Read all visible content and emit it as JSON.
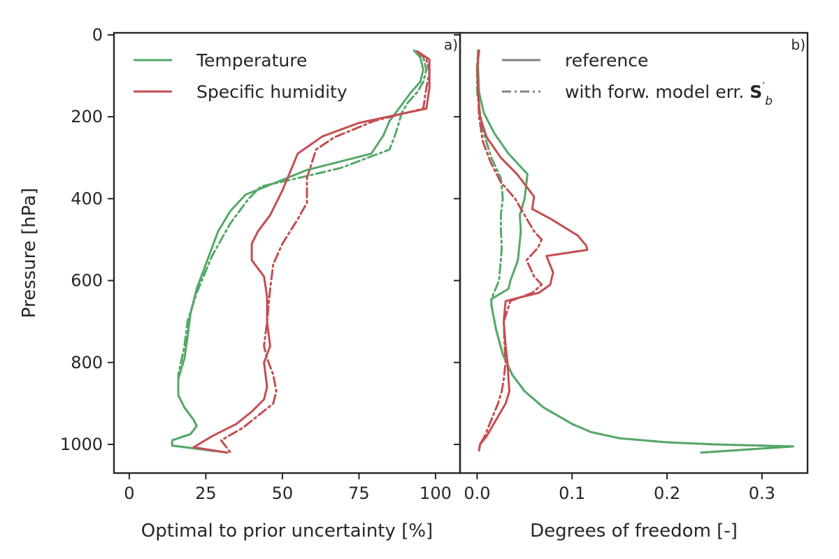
{
  "chart_data": [
    {
      "type": "line",
      "panel_label": "a)",
      "xlabel": "Optimal to prior uncertainty [%]",
      "ylabel": "Pressure [hPa]",
      "xlim": [
        -5,
        108
      ],
      "ylim": [
        1070,
        -5
      ],
      "xticks": [
        0,
        25,
        50,
        75,
        100
      ],
      "yticks": [
        0,
        200,
        400,
        600,
        800,
        1000
      ],
      "grid": false,
      "legend": {
        "placement": "top-left",
        "entries": [
          {
            "label": "Temperature",
            "color": "#55a868",
            "style": "solid"
          },
          {
            "label": "Specific humidity",
            "color": "#c44e52",
            "style": "solid"
          }
        ]
      },
      "series": [
        {
          "name": "Temperature",
          "color": "#55a868",
          "style": "solid",
          "points": [
            [
              93,
              38
            ],
            [
              95,
              55
            ],
            [
              96,
              85
            ],
            [
              95,
              115
            ],
            [
              92,
              140
            ],
            [
              89,
              170
            ],
            [
              85,
              210
            ],
            [
              83,
              245
            ],
            [
              79,
              290
            ],
            [
              58,
              330
            ],
            [
              48,
              360
            ],
            [
              38,
              390
            ],
            [
              33,
              430
            ],
            [
              29,
              480
            ],
            [
              25,
              560
            ],
            [
              22,
              620
            ],
            [
              20,
              680
            ],
            [
              19,
              740
            ],
            [
              18,
              790
            ],
            [
              16,
              840
            ],
            [
              16,
              880
            ],
            [
              18,
              910
            ],
            [
              21,
              940
            ],
            [
              22,
              955
            ],
            [
              20,
              975
            ],
            [
              14,
              990
            ],
            [
              14,
              1003
            ],
            [
              32,
              1020
            ]
          ]
        },
        {
          "name": "Temperature",
          "color": "#55a868",
          "style": "dashdot",
          "points": [
            [
              93,
              38
            ],
            [
              96,
              55
            ],
            [
              97,
              85
            ],
            [
              96,
              115
            ],
            [
              94,
              140
            ],
            [
              91,
              165
            ],
            [
              89,
              190
            ],
            [
              87,
              240
            ],
            [
              85,
              280
            ],
            [
              69,
              325
            ],
            [
              55,
              350
            ],
            [
              43,
              370
            ],
            [
              39,
              400
            ],
            [
              33,
              460
            ],
            [
              27,
              540
            ],
            [
              22,
              630
            ],
            [
              19,
              700
            ],
            [
              18,
              760
            ],
            [
              16,
              830
            ],
            [
              16,
              880
            ],
            [
              18,
              910
            ],
            [
              21,
              940
            ],
            [
              22,
              955
            ],
            [
              20,
              975
            ],
            [
              14,
              990
            ],
            [
              14,
              1003
            ],
            [
              32,
              1020
            ]
          ]
        },
        {
          "name": "Specific humidity",
          "color": "#c44e52",
          "style": "solid",
          "points": [
            [
              94,
              40
            ],
            [
              98,
              60
            ],
            [
              98,
              90
            ],
            [
              98,
              130
            ],
            [
              97,
              180
            ],
            [
              75,
              215
            ],
            [
              63,
              248
            ],
            [
              55,
              290
            ],
            [
              50,
              380
            ],
            [
              46,
              440
            ],
            [
              42,
              480
            ],
            [
              40,
              510
            ],
            [
              40,
              550
            ],
            [
              44,
              590
            ],
            [
              45,
              640
            ],
            [
              45,
              700
            ],
            [
              46,
              760
            ],
            [
              44,
              800
            ],
            [
              45,
              860
            ],
            [
              44,
              890
            ],
            [
              40,
              920
            ],
            [
              35,
              950
            ],
            [
              27,
              980
            ],
            [
              21,
              1007
            ],
            [
              32,
              1020
            ]
          ]
        },
        {
          "name": "Specific humidity",
          "color": "#c44e52",
          "style": "dashdot",
          "points": [
            [
              94,
              40
            ],
            [
              97,
              60
            ],
            [
              98,
              90
            ],
            [
              97,
              130
            ],
            [
              96,
              180
            ],
            [
              80,
              210
            ],
            [
              67,
              250
            ],
            [
              61,
              280
            ],
            [
              58,
              350
            ],
            [
              58,
              410
            ],
            [
              55,
              450
            ],
            [
              50,
              510
            ],
            [
              47,
              560
            ],
            [
              46,
              620
            ],
            [
              45,
              700
            ],
            [
              44,
              760
            ],
            [
              45,
              790
            ],
            [
              47,
              830
            ],
            [
              48,
              870
            ],
            [
              47,
              900
            ],
            [
              42,
              930
            ],
            [
              37,
              960
            ],
            [
              30,
              990
            ],
            [
              33,
              1020
            ]
          ]
        }
      ]
    },
    {
      "type": "line",
      "panel_label": "b)",
      "xlabel": "Degrees of freedom [-]",
      "ylabel": "",
      "xlim": [
        -0.018,
        0.348
      ],
      "ylim": [
        1070,
        -5
      ],
      "xticks": [
        0.0,
        0.1,
        0.2,
        0.3
      ],
      "xtick_labels": [
        "0.0",
        "0.1",
        "0.2",
        "0.3"
      ],
      "grid": false,
      "legend": {
        "placement": "top-left",
        "entries": [
          {
            "label": "reference",
            "color": "#808080",
            "style": "solid"
          },
          {
            "label": "with forw. model err. ",
            "math_suffix": "S′b",
            "color": "#808080",
            "style": "dashdot"
          }
        ]
      },
      "series": [
        {
          "name": "Temperature",
          "color": "#55a868",
          "style": "solid",
          "points": [
            [
              0.001,
              38
            ],
            [
              0.001,
              80
            ],
            [
              0.002,
              140
            ],
            [
              0.007,
              190
            ],
            [
              0.018,
              240
            ],
            [
              0.033,
              290
            ],
            [
              0.053,
              340
            ],
            [
              0.05,
              400
            ],
            [
              0.045,
              440
            ],
            [
              0.046,
              480
            ],
            [
              0.043,
              550
            ],
            [
              0.035,
              600
            ],
            [
              0.033,
              620
            ],
            [
              0.015,
              645
            ],
            [
              0.015,
              660
            ],
            [
              0.02,
              720
            ],
            [
              0.027,
              780
            ],
            [
              0.037,
              830
            ],
            [
              0.05,
              870
            ],
            [
              0.07,
              910
            ],
            [
              0.1,
              950
            ],
            [
              0.12,
              970
            ],
            [
              0.15,
              985
            ],
            [
              0.2,
              995
            ],
            [
              0.25,
              1000
            ],
            [
              0.333,
              1005
            ],
            [
              0.236,
              1020
            ]
          ]
        },
        {
          "name": "Temperature",
          "color": "#55a868",
          "style": "dashdot",
          "points": [
            [
              0.001,
              38
            ],
            [
              0.0,
              80
            ],
            [
              0.0,
              140
            ],
            [
              0.003,
              190
            ],
            [
              0.007,
              240
            ],
            [
              0.015,
              300
            ],
            [
              0.025,
              350
            ],
            [
              0.027,
              400
            ],
            [
              0.025,
              440
            ],
            [
              0.025,
              480
            ],
            [
              0.026,
              520
            ],
            [
              0.025,
              550
            ],
            [
              0.023,
              600
            ],
            [
              0.015,
              645
            ],
            [
              0.015,
              660
            ],
            [
              0.02,
              720
            ],
            [
              0.027,
              780
            ],
            [
              0.037,
              830
            ],
            [
              0.05,
              870
            ],
            [
              0.07,
              910
            ],
            [
              0.1,
              950
            ],
            [
              0.12,
              970
            ],
            [
              0.15,
              985
            ],
            [
              0.2,
              995
            ],
            [
              0.25,
              1000
            ],
            [
              0.333,
              1005
            ],
            [
              0.236,
              1020
            ]
          ]
        },
        {
          "name": "Specific humidity",
          "color": "#c44e52",
          "style": "solid",
          "points": [
            [
              0.002,
              38
            ],
            [
              0.0,
              80
            ],
            [
              0.001,
              140
            ],
            [
              0.003,
              200
            ],
            [
              0.01,
              250
            ],
            [
              0.025,
              300
            ],
            [
              0.042,
              340
            ],
            [
              0.06,
              395
            ],
            [
              0.058,
              425
            ],
            [
              0.078,
              450
            ],
            [
              0.106,
              490
            ],
            [
              0.115,
              515
            ],
            [
              0.116,
              525
            ],
            [
              0.073,
              540
            ],
            [
              0.08,
              580
            ],
            [
              0.077,
              610
            ],
            [
              0.065,
              630
            ],
            [
              0.047,
              640
            ],
            [
              0.03,
              650
            ],
            [
              0.028,
              700
            ],
            [
              0.03,
              760
            ],
            [
              0.032,
              800
            ],
            [
              0.033,
              840
            ],
            [
              0.034,
              870
            ],
            [
              0.03,
              900
            ],
            [
              0.02,
              940
            ],
            [
              0.01,
              980
            ],
            [
              0.003,
              1000
            ],
            [
              0.002,
              1015
            ]
          ]
        },
        {
          "name": "Specific humidity",
          "color": "#c44e52",
          "style": "dashdot",
          "points": [
            [
              0.002,
              38
            ],
            [
              0.0,
              80
            ],
            [
              0.001,
              140
            ],
            [
              0.002,
              200
            ],
            [
              0.006,
              260
            ],
            [
              0.014,
              310
            ],
            [
              0.025,
              360
            ],
            [
              0.04,
              400
            ],
            [
              0.05,
              440
            ],
            [
              0.06,
              480
            ],
            [
              0.068,
              500
            ],
            [
              0.064,
              520
            ],
            [
              0.052,
              550
            ],
            [
              0.06,
              590
            ],
            [
              0.068,
              610
            ],
            [
              0.058,
              630
            ],
            [
              0.035,
              650
            ],
            [
              0.028,
              700
            ],
            [
              0.029,
              760
            ],
            [
              0.03,
              800
            ],
            [
              0.028,
              840
            ],
            [
              0.026,
              870
            ],
            [
              0.022,
              900
            ],
            [
              0.015,
              940
            ],
            [
              0.008,
              980
            ],
            [
              0.003,
              1000
            ],
            [
              0.002,
              1015
            ]
          ]
        }
      ]
    }
  ]
}
